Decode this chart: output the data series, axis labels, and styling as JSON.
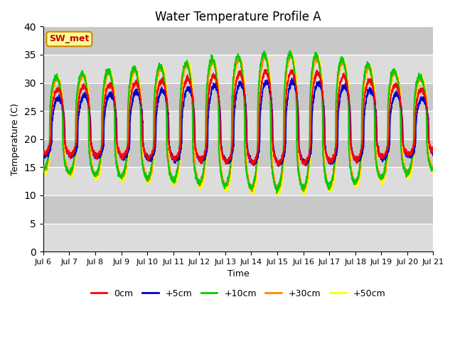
{
  "title": "Water Temperature Profile A",
  "xlabel": "Time",
  "ylabel": "Temperature (C)",
  "ylim": [
    0,
    40
  ],
  "yticks": [
    0,
    5,
    10,
    15,
    20,
    25,
    30,
    35,
    40
  ],
  "n_days": 15,
  "colors": {
    "0cm": "#ff0000",
    "+5cm": "#0000cc",
    "+10cm": "#00cc00",
    "+30cm": "#ff8800",
    "+50cm": "#ffff00"
  },
  "annotation_text": "SW_met",
  "annotation_facecolor": "#ffff99",
  "annotation_edgecolor": "#cc8800",
  "annotation_textcolor": "#cc0000",
  "bg_color": "#e8e8e8",
  "band_color_light": "#dcdcdc",
  "band_color_dark": "#c8c8c8",
  "fig_bg": "#ffffff",
  "linewidth": 1.2,
  "samples_per_day": 240
}
